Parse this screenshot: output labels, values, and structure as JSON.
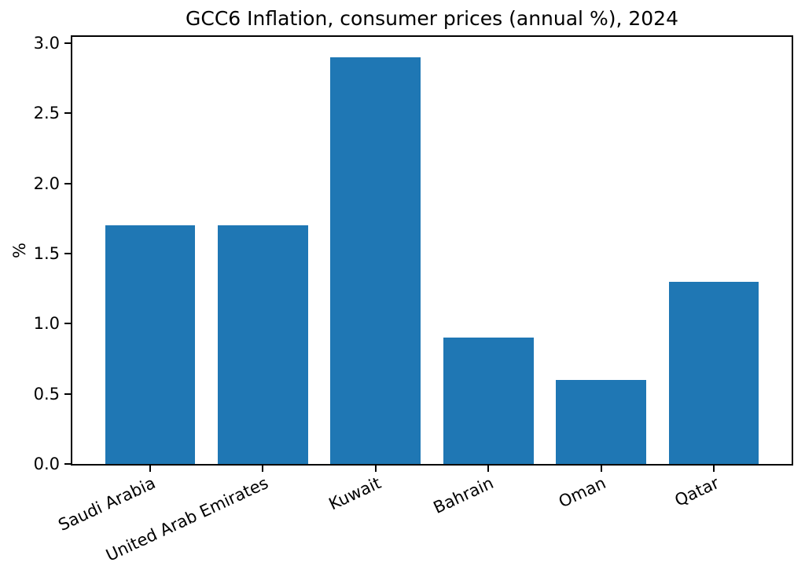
{
  "chart_data": {
    "type": "bar",
    "title": "GCC6 Inflation, consumer prices (annual %), 2024",
    "categories": [
      "Saudi Arabia",
      "United Arab Emirates",
      "Kuwait",
      "Bahrain",
      "Oman",
      "Qatar"
    ],
    "values": [
      1.7,
      1.7,
      2.9,
      0.9,
      0.6,
      1.3
    ],
    "xlabel": "",
    "ylabel": "%",
    "ylim": [
      0,
      3.045
    ],
    "yticks": [
      0.0,
      0.5,
      1.0,
      1.5,
      2.0,
      2.5,
      3.0
    ],
    "ytick_labels": [
      "0.0",
      "0.5",
      "1.0",
      "1.5",
      "2.0",
      "2.5",
      "3.0"
    ],
    "bar_color": "#1f77b4",
    "spine_color": "#000000",
    "background_color": "#ffffff",
    "grid": false,
    "legend": null,
    "bar_width_fraction": 0.8,
    "x_margin_fraction": 0.05,
    "x_tick_rotation_deg": 25
  }
}
